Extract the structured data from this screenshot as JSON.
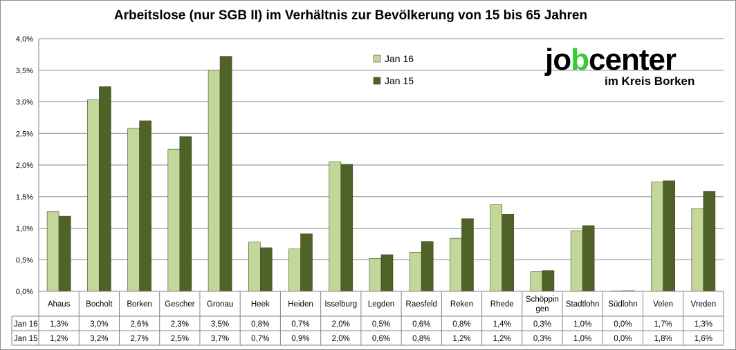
{
  "chart_data": {
    "type": "bar",
    "title": "Arbeitslose (nur SGB II) im Verhältnis zur Bevölkerung von 15 bis 65 Jahren",
    "categories": [
      "Ahaus",
      "Bocholt",
      "Borken",
      "Gescher",
      "Gronau",
      "Heek",
      "Heiden",
      "Isselburg",
      "Legden",
      "Raesfeld",
      "Reken",
      "Rhede",
      "Schöppin gen",
      "Stadtlohn",
      "Südlohn",
      "Velen",
      "Vreden"
    ],
    "category_lines": [
      [
        "Ahaus"
      ],
      [
        "Bocholt"
      ],
      [
        "Borken"
      ],
      [
        "Gescher"
      ],
      [
        "Gronau"
      ],
      [
        "Heek"
      ],
      [
        "Heiden"
      ],
      [
        "Isselburg"
      ],
      [
        "Legden"
      ],
      [
        "Raesfeld"
      ],
      [
        "Reken"
      ],
      [
        "Rhede"
      ],
      [
        "Schöppin",
        "gen"
      ],
      [
        "Stadtlohn"
      ],
      [
        "Südlohn"
      ],
      [
        "Velen"
      ],
      [
        "Vreden"
      ]
    ],
    "series": [
      {
        "name": "Jan 16",
        "color": "#c4d79b",
        "values": [
          1.26,
          3.03,
          2.58,
          2.25,
          3.5,
          0.78,
          0.67,
          2.05,
          0.52,
          0.62,
          0.84,
          1.37,
          0.31,
          0.96,
          0.0,
          1.73,
          1.31
        ],
        "labels": [
          "1,3%",
          "3,0%",
          "2,6%",
          "2,3%",
          "3,5%",
          "0,8%",
          "0,7%",
          "2,0%",
          "0,5%",
          "0,6%",
          "0,8%",
          "1,4%",
          "0,3%",
          "1,0%",
          "0,0%",
          "1,7%",
          "1,3%"
        ]
      },
      {
        "name": "Jan 15",
        "color": "#4f6228",
        "values": [
          1.19,
          3.24,
          2.7,
          2.45,
          3.72,
          0.69,
          0.91,
          2.01,
          0.58,
          0.79,
          1.15,
          1.22,
          0.33,
          1.04,
          0.01,
          1.75,
          1.58
        ],
        "labels": [
          "1,2%",
          "3,2%",
          "2,7%",
          "2,5%",
          "3,7%",
          "0,7%",
          "0,9%",
          "2,0%",
          "0,6%",
          "0,8%",
          "1,2%",
          "1,2%",
          "0,3%",
          "1,0%",
          "0,0%",
          "1,8%",
          "1,6%"
        ]
      }
    ],
    "y_ticks": [
      "0,0%",
      "0,5%",
      "1,0%",
      "1,5%",
      "2,0%",
      "2,5%",
      "3,0%",
      "3,5%",
      "4,0%"
    ],
    "ylim": [
      0,
      4.0
    ],
    "grid": true,
    "legend_position": "top-center",
    "data_table": true
  },
  "logo": {
    "word_a": "jo",
    "word_b": "b",
    "word_c": "center",
    "subtitle": "im Kreis Borken"
  }
}
